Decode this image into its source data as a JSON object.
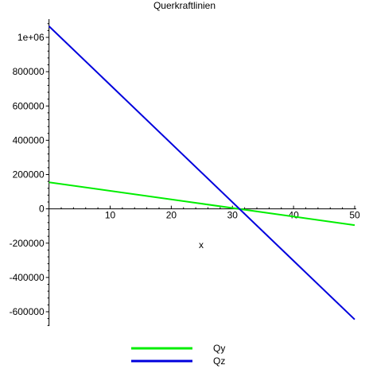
{
  "chart_data": {
    "type": "line",
    "title": "Querkraftlinien",
    "xlabel": "x",
    "ylabel": "",
    "xlim": [
      0,
      50
    ],
    "ylim": [
      -680000,
      1100000
    ],
    "x_ticks": [
      10,
      20,
      30,
      40,
      50
    ],
    "x_tick_labels": [
      "10",
      "20",
      "30",
      "40",
      "50"
    ],
    "y_ticks": [
      1000000,
      800000,
      600000,
      400000,
      200000,
      0,
      -200000,
      -400000,
      -600000
    ],
    "y_tick_labels": [
      "1e+06",
      "800000",
      "600000",
      "400000",
      "200000",
      "0",
      "-200000",
      "-400000",
      "-600000"
    ],
    "legend_position": "bottom",
    "grid": false,
    "series": [
      {
        "name": "Qy",
        "color": "#00ee00",
        "x": [
          0,
          50
        ],
        "y": [
          155000,
          -95000
        ]
      },
      {
        "name": "Qz",
        "color": "#0000dd",
        "x": [
          0,
          50
        ],
        "y": [
          1065000,
          -645000
        ]
      }
    ]
  }
}
